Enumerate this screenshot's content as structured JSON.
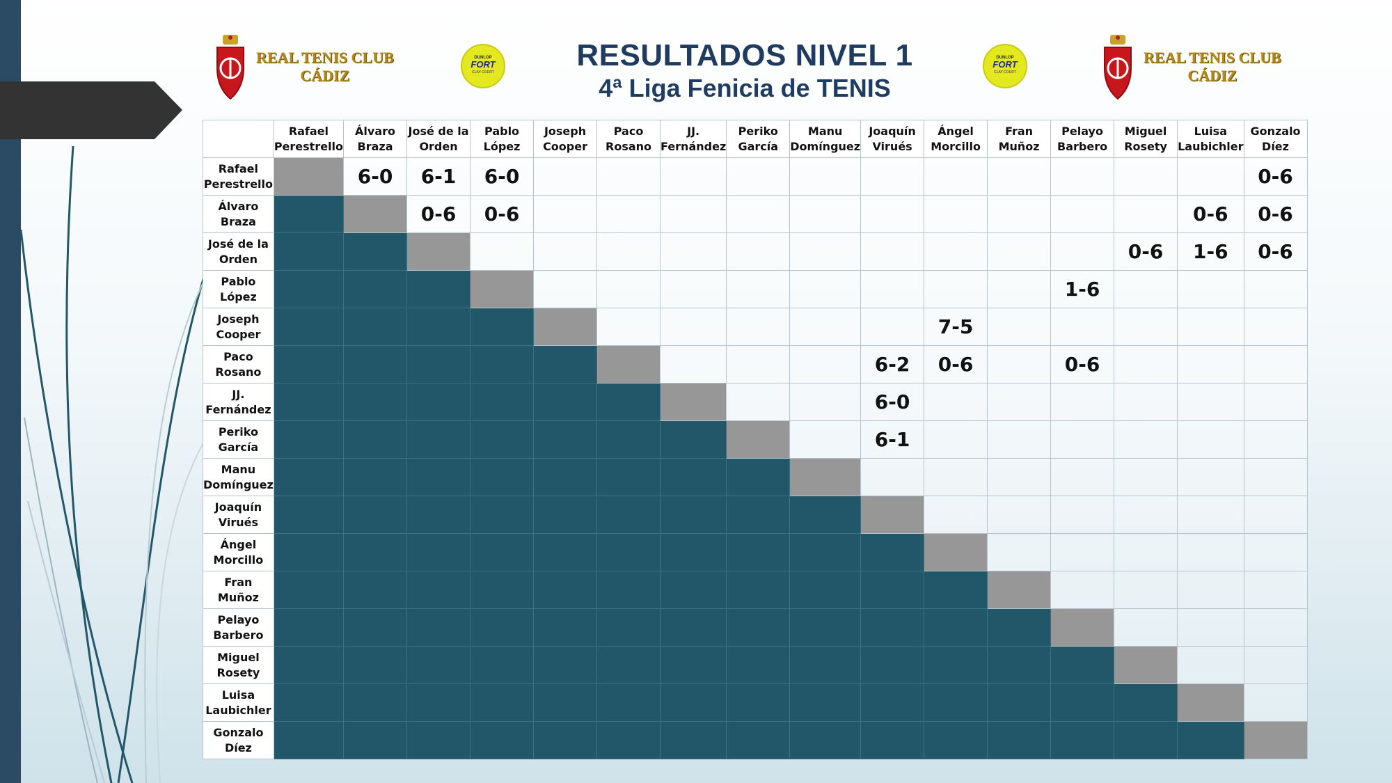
{
  "title": "RESULTADOS NIVEL 1",
  "subtitle": "4ª Liga Fenicia de TENIS",
  "club_logo": {
    "line1": "REAL TENIS CLUB",
    "line2": "CÁDIZ"
  },
  "sponsor_logo": {
    "brand": "DUNLOP",
    "model": "FORT",
    "tag": "CLAY COURT"
  },
  "colors": {
    "lower_cell": "#225669",
    "self_cell": "#979797",
    "title": "#1f3b60",
    "logo_gold": "#b58a14",
    "left_bar": "#2b4a63"
  },
  "players": [
    "Rafael Perestrello",
    "Álvaro Braza",
    "José de la Orden",
    "Pablo López",
    "Joseph Cooper",
    "Paco Rosano",
    "JJ. Fernández",
    "Periko García",
    "Manu Domínguez",
    "Joaquín Virués",
    "Ángel Morcillo",
    "Fran Muñoz",
    "Pelayo Barbero",
    "Miguel Rosety",
    "Luisa Laubichler",
    "Gonzalo Díez"
  ],
  "results": [
    [
      "",
      "6-0",
      "6-1",
      "6-0",
      "",
      "",
      "",
      "",
      "",
      "",
      "",
      "",
      "",
      "",
      "",
      "0-6"
    ],
    [
      "",
      "",
      "0-6",
      "0-6",
      "",
      "",
      "",
      "",
      "",
      "",
      "",
      "",
      "",
      "",
      "0-6",
      "0-6"
    ],
    [
      "",
      "",
      "",
      "",
      "",
      "",
      "",
      "",
      "",
      "",
      "",
      "",
      "",
      "0-6",
      "1-6",
      "0-6"
    ],
    [
      "",
      "",
      "",
      "",
      "",
      "",
      "",
      "",
      "",
      "",
      "",
      "",
      "1-6",
      "",
      "",
      ""
    ],
    [
      "",
      "",
      "",
      "",
      "",
      "",
      "",
      "",
      "",
      "",
      "7-5",
      "",
      "",
      "",
      "",
      ""
    ],
    [
      "",
      "",
      "",
      "",
      "",
      "",
      "",
      "",
      "",
      "6-2",
      "0-6",
      "",
      "0-6",
      "",
      "",
      ""
    ],
    [
      "",
      "",
      "",
      "",
      "",
      "",
      "",
      "",
      "",
      "6-0",
      "",
      "",
      "",
      "",
      "",
      ""
    ],
    [
      "",
      "",
      "",
      "",
      "",
      "",
      "",
      "",
      "",
      "6-1",
      "",
      "",
      "",
      "",
      "",
      ""
    ],
    [
      "",
      "",
      "",
      "",
      "",
      "",
      "",
      "",
      "",
      "",
      "",
      "",
      "",
      "",
      "",
      ""
    ],
    [
      "",
      "",
      "",
      "",
      "",
      "",
      "",
      "",
      "",
      "",
      "",
      "",
      "",
      "",
      "",
      ""
    ],
    [
      "",
      "",
      "",
      "",
      "",
      "",
      "",
      "",
      "",
      "",
      "",
      "",
      "",
      "",
      "",
      ""
    ],
    [
      "",
      "",
      "",
      "",
      "",
      "",
      "",
      "",
      "",
      "",
      "",
      "",
      "",
      "",
      "",
      ""
    ],
    [
      "",
      "",
      "",
      "",
      "",
      "",
      "",
      "",
      "",
      "",
      "",
      "",
      "",
      "",
      "",
      ""
    ],
    [
      "",
      "",
      "",
      "",
      "",
      "",
      "",
      "",
      "",
      "",
      "",
      "",
      "",
      "",
      "",
      ""
    ],
    [
      "",
      "",
      "",
      "",
      "",
      "",
      "",
      "",
      "",
      "",
      "",
      "",
      "",
      "",
      "",
      ""
    ],
    [
      "",
      "",
      "",
      "",
      "",
      "",
      "",
      "",
      "",
      "",
      "",
      "",
      "",
      "",
      "",
      ""
    ]
  ]
}
